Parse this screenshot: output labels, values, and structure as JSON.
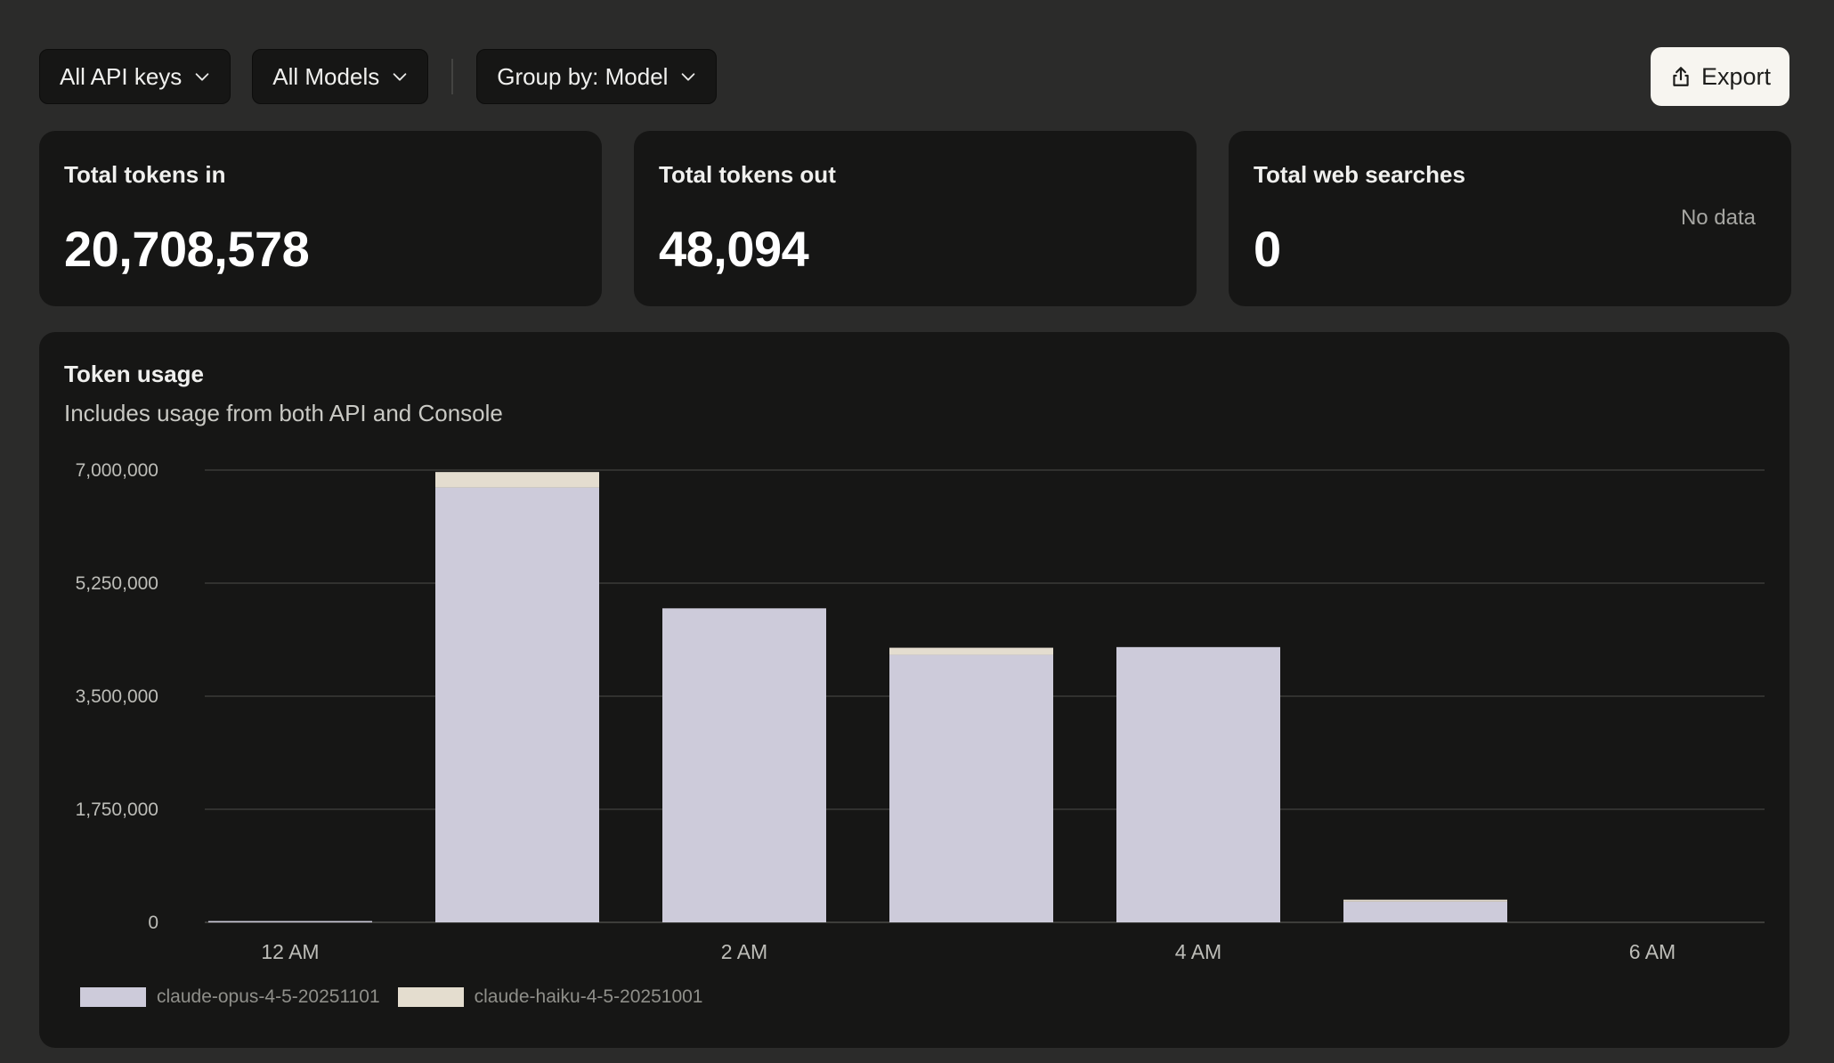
{
  "toolbar": {
    "api_keys_label": "All API keys",
    "models_label": "All Models",
    "group_by_label": "Group by: Model",
    "export_label": "Export"
  },
  "cards": {
    "tokens_in": {
      "label": "Total tokens in",
      "value": "20,708,578"
    },
    "tokens_out": {
      "label": "Total tokens out",
      "value": "48,094"
    },
    "web_searches": {
      "label": "Total web searches",
      "value": "0",
      "note": "No data"
    }
  },
  "chart": {
    "title": "Token usage",
    "subtitle": "Includes usage from both API and Console"
  },
  "colors": {
    "opus": "#cdcbda",
    "haiku": "#e4ddcf",
    "grid": "#3a3a38",
    "tick_text": "#bdbdb8"
  },
  "icons": {
    "export": "share-export-icon",
    "dropdown": "chevron-down-icon"
  },
  "chart_data": {
    "type": "bar",
    "stacked": true,
    "categories": [
      "12 AM",
      "1 AM",
      "2 AM",
      "3 AM",
      "4 AM",
      "5 AM",
      "6 AM"
    ],
    "x_tick_labels": [
      "12 AM",
      "2 AM",
      "4 AM",
      "6 AM"
    ],
    "series": [
      {
        "name": "claude-opus-4-5-20251101",
        "values": [
          20000,
          6730000,
          4860000,
          4140000,
          4260000,
          320000,
          0
        ]
      },
      {
        "name": "claude-haiku-4-5-20251001",
        "values": [
          0,
          240000,
          0,
          110000,
          0,
          30000,
          0
        ]
      }
    ],
    "ylim": [
      0,
      7000000
    ],
    "yticks": [
      0,
      1750000,
      3500000,
      5250000,
      7000000
    ],
    "ytick_labels": [
      "0",
      "1,750,000",
      "3,500,000",
      "5,250,000",
      "7,000,000"
    ],
    "grid": true,
    "legend": "bottom-left"
  }
}
